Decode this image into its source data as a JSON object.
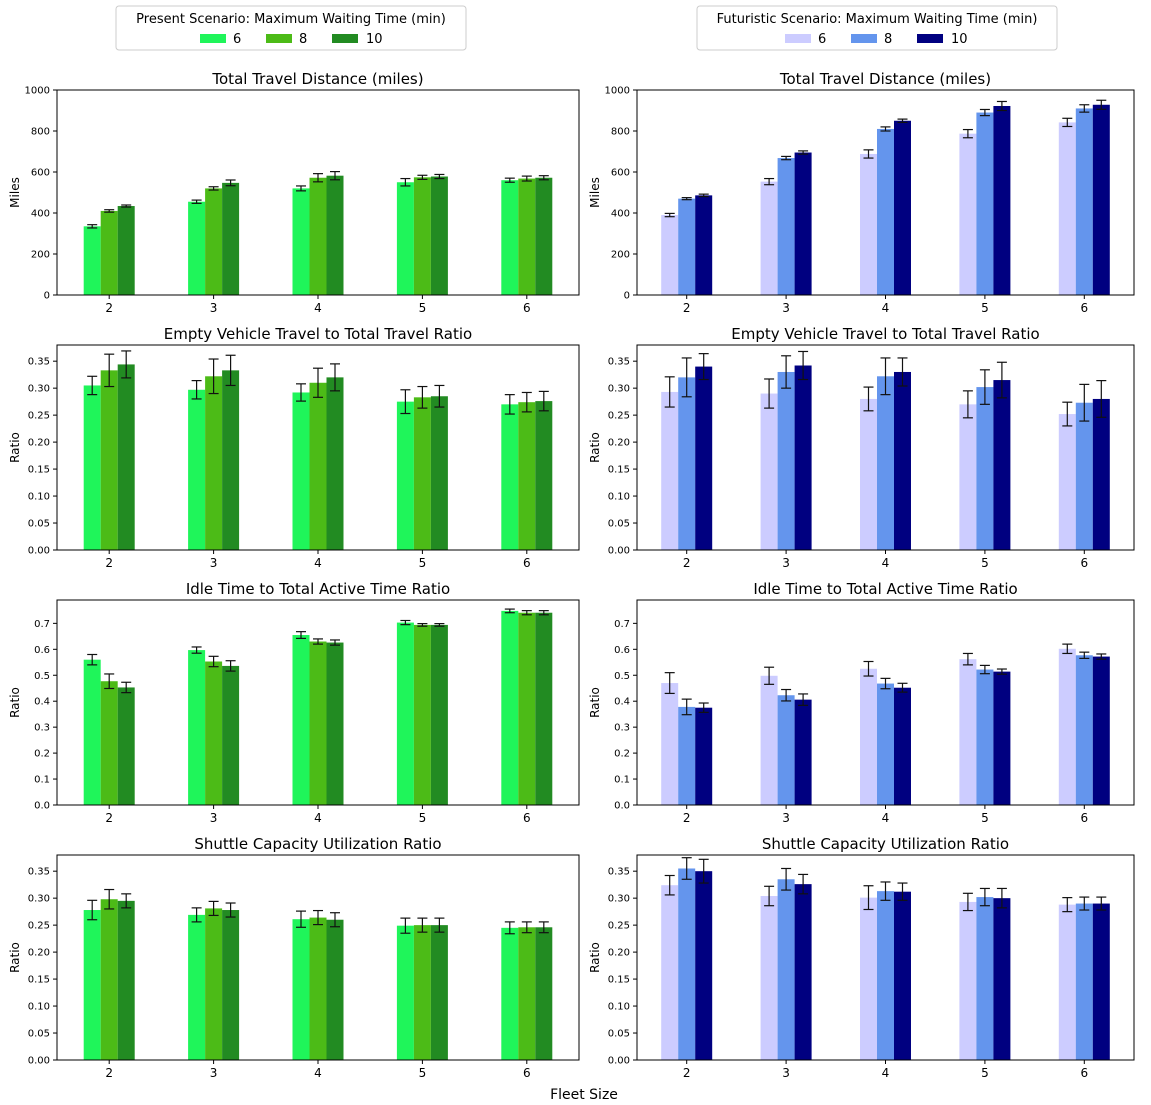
{
  "figure": {
    "xlabel": "Fleet Size",
    "categories": [
      "2",
      "3",
      "4",
      "5",
      "6"
    ]
  },
  "legends": [
    {
      "title": "Present Scenario: Maximum Waiting Time (min)",
      "entries": [
        {
          "label": "6",
          "color": "#1ff55a"
        },
        {
          "label": "8",
          "color": "#4cbb17"
        },
        {
          "label": "10",
          "color": "#228b22"
        }
      ]
    },
    {
      "title": "Futuristic Scenario: Maximum Waiting Time (min)",
      "entries": [
        {
          "label": "6",
          "color": "#ccccff"
        },
        {
          "label": "8",
          "color": "#6495ed"
        },
        {
          "label": "10",
          "color": "#000080"
        }
      ]
    }
  ],
  "chart_data": [
    {
      "type": "bar",
      "scenario": "Present",
      "title": "Total Travel Distance (miles)",
      "ylabel": "Miles",
      "categories": [
        "2",
        "3",
        "4",
        "5",
        "6"
      ],
      "ylim": [
        0,
        1000
      ],
      "yticks": [
        "0",
        "200",
        "400",
        "600",
        "800",
        "1000"
      ],
      "ytick_values": [
        0,
        200,
        400,
        600,
        800,
        1000
      ],
      "series": [
        {
          "name": "6",
          "color": "#1ff55a",
          "values": [
            335,
            455,
            520,
            550,
            560
          ],
          "errors": [
            8,
            8,
            12,
            18,
            10
          ]
        },
        {
          "name": "8",
          "color": "#4cbb17",
          "values": [
            410,
            520,
            572,
            574,
            568
          ],
          "errors": [
            6,
            8,
            20,
            10,
            12
          ]
        },
        {
          "name": "10",
          "color": "#228b22",
          "values": [
            434,
            547,
            582,
            578,
            572
          ],
          "errors": [
            5,
            14,
            20,
            10,
            10
          ]
        }
      ]
    },
    {
      "type": "bar",
      "scenario": "Futuristic",
      "title": "Total Travel Distance (miles)",
      "ylabel": "Miles",
      "categories": [
        "2",
        "3",
        "4",
        "5",
        "6"
      ],
      "ylim": [
        0,
        1000
      ],
      "yticks": [
        "0",
        "200",
        "400",
        "600",
        "800",
        "1000"
      ],
      "ytick_values": [
        0,
        200,
        400,
        600,
        800,
        1000
      ],
      "series": [
        {
          "name": "6",
          "color": "#ccccff",
          "values": [
            390,
            553,
            688,
            787,
            842
          ],
          "errors": [
            8,
            15,
            20,
            20,
            20
          ]
        },
        {
          "name": "8",
          "color": "#6495ed",
          "values": [
            470,
            668,
            810,
            890,
            910
          ],
          "errors": [
            5,
            8,
            10,
            15,
            18
          ]
        },
        {
          "name": "10",
          "color": "#000080",
          "values": [
            486,
            695,
            850,
            922,
            928
          ],
          "errors": [
            6,
            8,
            8,
            22,
            22
          ]
        }
      ]
    },
    {
      "type": "bar",
      "scenario": "Present",
      "title": "Empty Vehicle Travel to Total Travel Ratio",
      "ylabel": "Ratio",
      "categories": [
        "2",
        "3",
        "4",
        "5",
        "6"
      ],
      "ylim": [
        0,
        0.38
      ],
      "yticks": [
        "0.00",
        "0.05",
        "0.10",
        "0.15",
        "0.20",
        "0.25",
        "0.30",
        "0.35"
      ],
      "ytick_values": [
        0,
        0.05,
        0.1,
        0.15,
        0.2,
        0.25,
        0.3,
        0.35
      ],
      "series": [
        {
          "name": "6",
          "color": "#1ff55a",
          "values": [
            0.305,
            0.297,
            0.292,
            0.275,
            0.27
          ],
          "errors": [
            0.017,
            0.017,
            0.016,
            0.022,
            0.018
          ]
        },
        {
          "name": "8",
          "color": "#4cbb17",
          "values": [
            0.333,
            0.322,
            0.31,
            0.283,
            0.274
          ],
          "errors": [
            0.03,
            0.032,
            0.027,
            0.02,
            0.018
          ]
        },
        {
          "name": "10",
          "color": "#228b22",
          "values": [
            0.344,
            0.333,
            0.32,
            0.285,
            0.276
          ],
          "errors": [
            0.025,
            0.028,
            0.025,
            0.02,
            0.018
          ]
        }
      ]
    },
    {
      "type": "bar",
      "scenario": "Futuristic",
      "title": "Empty Vehicle Travel to Total Travel Ratio",
      "ylabel": "Ratio",
      "categories": [
        "2",
        "3",
        "4",
        "5",
        "6"
      ],
      "ylim": [
        0,
        0.38
      ],
      "yticks": [
        "0.00",
        "0.05",
        "0.10",
        "0.15",
        "0.20",
        "0.25",
        "0.30",
        "0.35"
      ],
      "ytick_values": [
        0,
        0.05,
        0.1,
        0.15,
        0.2,
        0.25,
        0.3,
        0.35
      ],
      "series": [
        {
          "name": "6",
          "color": "#ccccff",
          "values": [
            0.293,
            0.29,
            0.28,
            0.27,
            0.252
          ],
          "errors": [
            0.028,
            0.027,
            0.022,
            0.025,
            0.022
          ]
        },
        {
          "name": "8",
          "color": "#6495ed",
          "values": [
            0.32,
            0.33,
            0.322,
            0.302,
            0.273
          ],
          "errors": [
            0.036,
            0.03,
            0.034,
            0.032,
            0.034
          ]
        },
        {
          "name": "10",
          "color": "#000080",
          "values": [
            0.34,
            0.342,
            0.33,
            0.315,
            0.28
          ],
          "errors": [
            0.024,
            0.026,
            0.026,
            0.033,
            0.034
          ]
        }
      ]
    },
    {
      "type": "bar",
      "scenario": "Present",
      "title": "Idle Time to Total Active Time Ratio",
      "ylabel": "Ratio",
      "categories": [
        "2",
        "3",
        "4",
        "5",
        "6"
      ],
      "ylim": [
        0,
        0.79
      ],
      "yticks": [
        "0.0",
        "0.1",
        "0.2",
        "0.3",
        "0.4",
        "0.5",
        "0.6",
        "0.7"
      ],
      "ytick_values": [
        0,
        0.1,
        0.2,
        0.3,
        0.4,
        0.5,
        0.6,
        0.7
      ],
      "series": [
        {
          "name": "6",
          "color": "#1ff55a",
          "values": [
            0.56,
            0.597,
            0.655,
            0.703,
            0.748
          ],
          "errors": [
            0.02,
            0.012,
            0.013,
            0.008,
            0.007
          ]
        },
        {
          "name": "8",
          "color": "#4cbb17",
          "values": [
            0.477,
            0.553,
            0.63,
            0.694,
            0.741
          ],
          "errors": [
            0.028,
            0.02,
            0.01,
            0.005,
            0.008
          ]
        },
        {
          "name": "10",
          "color": "#228b22",
          "values": [
            0.453,
            0.536,
            0.626,
            0.694,
            0.741
          ],
          "errors": [
            0.02,
            0.02,
            0.01,
            0.005,
            0.008
          ]
        }
      ]
    },
    {
      "type": "bar",
      "scenario": "Futuristic",
      "title": "Idle Time to Total Active Time Ratio",
      "ylabel": "Ratio",
      "categories": [
        "2",
        "3",
        "4",
        "5",
        "6"
      ],
      "ylim": [
        0,
        0.79
      ],
      "yticks": [
        "0.0",
        "0.1",
        "0.2",
        "0.3",
        "0.4",
        "0.5",
        "0.6",
        "0.7"
      ],
      "ytick_values": [
        0,
        0.1,
        0.2,
        0.3,
        0.4,
        0.5,
        0.6,
        0.7
      ],
      "series": [
        {
          "name": "6",
          "color": "#ccccff",
          "values": [
            0.47,
            0.498,
            0.525,
            0.562,
            0.602
          ],
          "errors": [
            0.04,
            0.033,
            0.028,
            0.022,
            0.018
          ]
        },
        {
          "name": "8",
          "color": "#6495ed",
          "values": [
            0.378,
            0.423,
            0.468,
            0.522,
            0.577
          ],
          "errors": [
            0.03,
            0.022,
            0.02,
            0.016,
            0.012
          ]
        },
        {
          "name": "10",
          "color": "#000080",
          "values": [
            0.375,
            0.406,
            0.452,
            0.514,
            0.572
          ],
          "errors": [
            0.018,
            0.022,
            0.017,
            0.01,
            0.01
          ]
        }
      ]
    },
    {
      "type": "bar",
      "scenario": "Present",
      "title": "Shuttle Capacity Utilization Ratio",
      "ylabel": "Ratio",
      "categories": [
        "2",
        "3",
        "4",
        "5",
        "6"
      ],
      "ylim": [
        0,
        0.38
      ],
      "yticks": [
        "0.00",
        "0.05",
        "0.10",
        "0.15",
        "0.20",
        "0.25",
        "0.30",
        "0.35"
      ],
      "ytick_values": [
        0,
        0.05,
        0.1,
        0.15,
        0.2,
        0.25,
        0.3,
        0.35
      ],
      "series": [
        {
          "name": "6",
          "color": "#1ff55a",
          "values": [
            0.278,
            0.269,
            0.261,
            0.249,
            0.245
          ],
          "errors": [
            0.018,
            0.013,
            0.015,
            0.014,
            0.011
          ]
        },
        {
          "name": "8",
          "color": "#4cbb17",
          "values": [
            0.298,
            0.281,
            0.264,
            0.25,
            0.246
          ],
          "errors": [
            0.018,
            0.013,
            0.013,
            0.013,
            0.01
          ]
        },
        {
          "name": "10",
          "color": "#228b22",
          "values": [
            0.295,
            0.278,
            0.26,
            0.25,
            0.246
          ],
          "errors": [
            0.013,
            0.013,
            0.013,
            0.013,
            0.01
          ]
        }
      ]
    },
    {
      "type": "bar",
      "scenario": "Futuristic",
      "title": "Shuttle Capacity Utilization Ratio",
      "ylabel": "Ratio",
      "categories": [
        "2",
        "3",
        "4",
        "5",
        "6"
      ],
      "ylim": [
        0,
        0.38
      ],
      "yticks": [
        "0.00",
        "0.05",
        "0.10",
        "0.15",
        "0.20",
        "0.25",
        "0.30",
        "0.35"
      ],
      "ytick_values": [
        0,
        0.05,
        0.1,
        0.15,
        0.2,
        0.25,
        0.3,
        0.35
      ],
      "series": [
        {
          "name": "6",
          "color": "#ccccff",
          "values": [
            0.324,
            0.304,
            0.301,
            0.293,
            0.288
          ],
          "errors": [
            0.018,
            0.018,
            0.022,
            0.016,
            0.013
          ]
        },
        {
          "name": "8",
          "color": "#6495ed",
          "values": [
            0.355,
            0.335,
            0.313,
            0.302,
            0.29
          ],
          "errors": [
            0.02,
            0.02,
            0.017,
            0.016,
            0.012
          ]
        },
        {
          "name": "10",
          "color": "#000080",
          "values": [
            0.35,
            0.326,
            0.312,
            0.3,
            0.29
          ],
          "errors": [
            0.022,
            0.018,
            0.016,
            0.018,
            0.012
          ]
        }
      ]
    }
  ]
}
